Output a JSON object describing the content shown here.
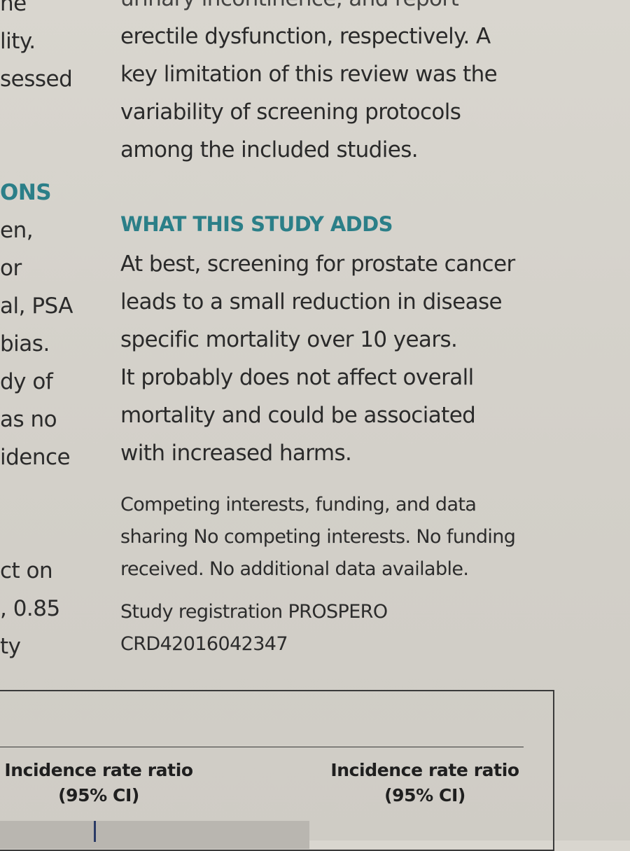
{
  "left_column": {
    "lines": [
      "ne",
      "lity.",
      "sessed",
      "",
      "",
      "ONS",
      "en,",
      "or",
      "al, PSA",
      "bias.",
      "dy of",
      "as no",
      "idence",
      "",
      "",
      "ct on",
      ", 0.85",
      "ty"
    ]
  },
  "right_column": {
    "top_partial_line": "urinary incontinence, and report",
    "intro_lines": [
      "erectile dysfunction, respectively. A",
      "key limitation of this review was the",
      "variability of screening protocols",
      "among the included studies."
    ],
    "section": {
      "heading": "WHAT THIS STUDY ADDS",
      "lines": [
        "At best, screening for prostate cancer",
        "leads to a small reduction in disease",
        "specific mortality over 10 years.",
        "It probably does not affect overall",
        "mortality and could be associated",
        "with increased harms."
      ]
    },
    "competing_interests": {
      "lines": [
        "Competing interests, funding, and data",
        "sharing No competing interests. No funding",
        "received. No additional data available."
      ]
    },
    "study_registration": {
      "lines": [
        "Study registration PROSPERO",
        "CRD42016042347"
      ]
    }
  },
  "table": {
    "headers": [
      {
        "line1": "Incidence rate ratio",
        "line2": "(95% CI)"
      },
      {
        "line1": "Incidence rate ratio",
        "line2": "(95% CI)"
      }
    ]
  },
  "colors": {
    "heading_teal": "#2b7f88",
    "text": "#2a2a2a",
    "paper": "#d6d3cc"
  }
}
